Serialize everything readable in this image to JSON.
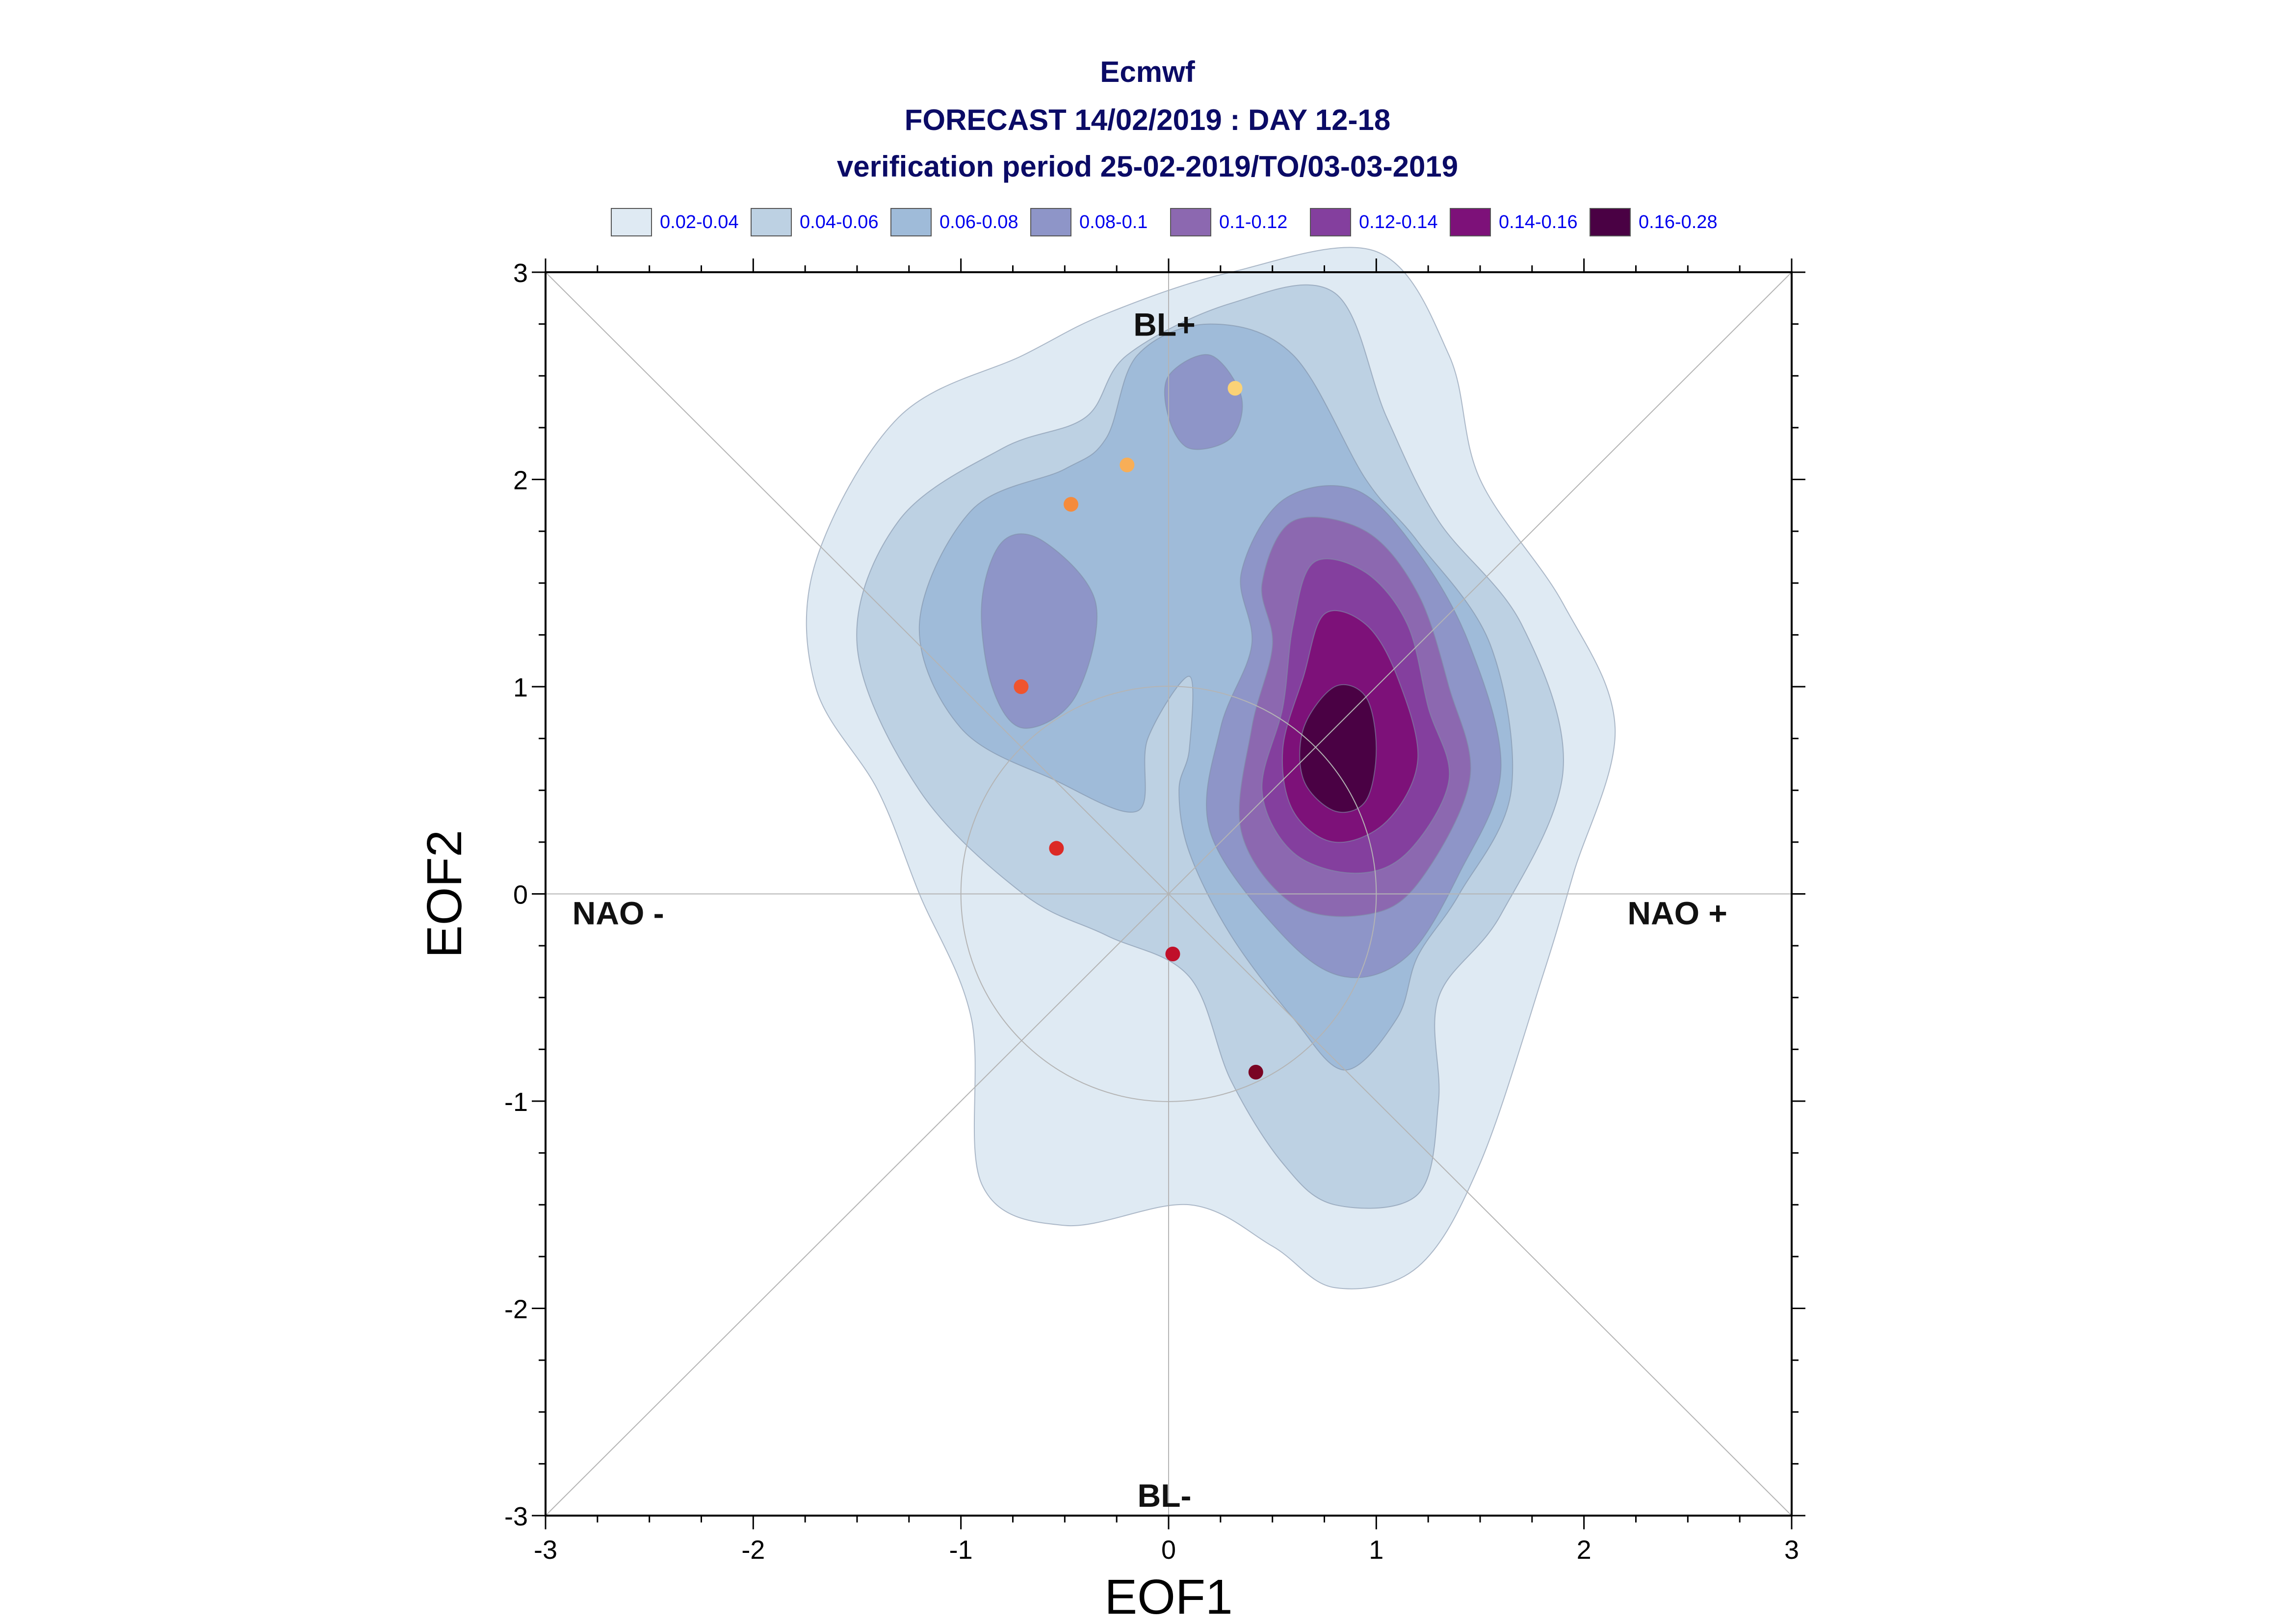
{
  "chart_data": {
    "type": "contour",
    "title_lines": [
      "Ecmwf",
      "FORECAST 14/02/2019 : DAY 12-18",
      "verification period 25-02-2019/TO/03-03-2019"
    ],
    "xlabel": "EOF1",
    "ylabel": "EOF2",
    "xlim": [
      -3,
      3
    ],
    "ylim": [
      -3,
      3
    ],
    "xticks": [
      -3,
      -2,
      -1,
      0,
      1,
      2,
      3
    ],
    "yticks": [
      -3,
      -2,
      -1,
      0,
      1,
      2,
      3
    ],
    "legend": [
      {
        "label": "0.02-0.04",
        "color": "#dfeaf3"
      },
      {
        "label": "0.04-0.06",
        "color": "#bdd1e3"
      },
      {
        "label": "0.06-0.08",
        "color": "#9fbbd9"
      },
      {
        "label": "0.08-0.1",
        "color": "#8e95c8"
      },
      {
        "label": "0.1-0.12",
        "color": "#8c68b0"
      },
      {
        "label": "0.12-0.14",
        "color": "#843f9e"
      },
      {
        "label": "0.14-0.16",
        "color": "#7d1179"
      },
      {
        "label": "0.16-0.28",
        "color": "#4a0144"
      }
    ],
    "regime_labels": [
      {
        "text": "BL+",
        "x": -0.02,
        "y": 2.75
      },
      {
        "text": "BL-",
        "x": -0.02,
        "y": -2.9
      },
      {
        "text": "NAO -",
        "x": -2.65,
        "y": -0.09
      },
      {
        "text": "NAO +",
        "x": 2.45,
        "y": -0.09
      }
    ],
    "points": [
      {
        "x": 0.32,
        "y": 2.44,
        "color": "#fbd276"
      },
      {
        "x": -0.2,
        "y": 2.07,
        "color": "#f8ae57"
      },
      {
        "x": -0.47,
        "y": 1.88,
        "color": "#f58b3c"
      },
      {
        "x": -0.71,
        "y": 1.0,
        "color": "#f0542e"
      },
      {
        "x": -0.54,
        "y": 0.22,
        "color": "#dc2a26"
      },
      {
        "x": 0.02,
        "y": -0.29,
        "color": "#c0102a"
      },
      {
        "x": 0.42,
        "y": -0.86,
        "color": "#7a0424"
      }
    ],
    "contours": [
      {
        "level": "0.02-0.04",
        "points": [
          [
            -0.3,
            2.8
          ],
          [
            0.3,
            3.0
          ],
          [
            1.0,
            3.1
          ],
          [
            1.35,
            2.6
          ],
          [
            1.5,
            2.0
          ],
          [
            1.9,
            1.4
          ],
          [
            2.15,
            0.8
          ],
          [
            1.95,
            0.1
          ],
          [
            1.8,
            -0.4
          ],
          [
            1.5,
            -1.3
          ],
          [
            1.2,
            -1.8
          ],
          [
            0.8,
            -1.9
          ],
          [
            0.5,
            -1.7
          ],
          [
            0.1,
            -1.5
          ],
          [
            -0.5,
            -1.6
          ],
          [
            -0.9,
            -1.4
          ],
          [
            -0.95,
            -0.6
          ],
          [
            -1.2,
            0.0
          ],
          [
            -1.4,
            0.5
          ],
          [
            -1.7,
            1.0
          ],
          [
            -1.7,
            1.6
          ],
          [
            -1.3,
            2.3
          ],
          [
            -0.7,
            2.6
          ]
        ]
      },
      {
        "level": "0.04-0.06",
        "points": [
          [
            -0.2,
            2.6
          ],
          [
            0.3,
            2.85
          ],
          [
            0.8,
            2.9
          ],
          [
            1.05,
            2.3
          ],
          [
            1.3,
            1.8
          ],
          [
            1.7,
            1.3
          ],
          [
            1.9,
            0.6
          ],
          [
            1.6,
            -0.1
          ],
          [
            1.3,
            -0.5
          ],
          [
            1.3,
            -1.0
          ],
          [
            1.2,
            -1.45
          ],
          [
            0.8,
            -1.5
          ],
          [
            0.55,
            -1.3
          ],
          [
            0.3,
            -0.9
          ],
          [
            0.1,
            -0.4
          ],
          [
            -0.3,
            -0.2
          ],
          [
            -0.7,
            0.0
          ],
          [
            -1.2,
            0.5
          ],
          [
            -1.5,
            1.2
          ],
          [
            -1.3,
            1.8
          ],
          [
            -0.8,
            2.15
          ],
          [
            -0.4,
            2.3
          ]
        ]
      },
      {
        "level": "0.06-0.08",
        "points": [
          [
            -0.15,
            2.6
          ],
          [
            0.2,
            2.75
          ],
          [
            0.6,
            2.6
          ],
          [
            0.95,
            2.0
          ],
          [
            1.2,
            1.7
          ],
          [
            1.55,
            1.2
          ],
          [
            1.65,
            0.5
          ],
          [
            1.4,
            0.0
          ],
          [
            1.2,
            -0.3
          ],
          [
            1.1,
            -0.6
          ],
          [
            0.85,
            -0.85
          ],
          [
            0.6,
            -0.6
          ],
          [
            0.3,
            -0.2
          ],
          [
            0.1,
            0.2
          ],
          [
            0.05,
            0.5
          ],
          [
            0.1,
            0.7
          ],
          [
            0.1,
            1.05
          ],
          [
            -0.1,
            0.75
          ],
          [
            -0.15,
            0.4
          ],
          [
            -0.55,
            0.55
          ],
          [
            -1.0,
            0.8
          ],
          [
            -1.2,
            1.3
          ],
          [
            -0.95,
            1.85
          ],
          [
            -0.5,
            2.05
          ],
          [
            -0.3,
            2.2
          ]
        ]
      },
      {
        "level": "0.08-0.1",
        "points": [
          [
            0.0,
            2.5
          ],
          [
            0.2,
            2.6
          ],
          [
            0.35,
            2.4
          ],
          [
            0.3,
            2.2
          ],
          [
            0.1,
            2.15
          ],
          [
            0.0,
            2.3
          ]
        ]
      },
      {
        "level": "0.08-0.1",
        "points": [
          [
            -0.8,
            1.7
          ],
          [
            -0.6,
            1.7
          ],
          [
            -0.35,
            1.4
          ],
          [
            -0.45,
            0.95
          ],
          [
            -0.7,
            0.8
          ],
          [
            -0.85,
            1.0
          ],
          [
            -0.9,
            1.4
          ]
        ]
      },
      {
        "level": "0.08-0.1",
        "points": [
          [
            0.55,
            1.9
          ],
          [
            0.9,
            1.95
          ],
          [
            1.2,
            1.65
          ],
          [
            1.45,
            1.2
          ],
          [
            1.6,
            0.6
          ],
          [
            1.4,
            0.1
          ],
          [
            1.15,
            -0.3
          ],
          [
            0.85,
            -0.4
          ],
          [
            0.55,
            -0.2
          ],
          [
            0.2,
            0.3
          ],
          [
            0.25,
            0.8
          ],
          [
            0.4,
            1.2
          ],
          [
            0.35,
            1.55
          ]
        ]
      },
      {
        "level": "0.1-0.12",
        "points": [
          [
            0.6,
            1.8
          ],
          [
            0.95,
            1.75
          ],
          [
            1.2,
            1.45
          ],
          [
            1.35,
            1.0
          ],
          [
            1.45,
            0.55
          ],
          [
            1.2,
            0.05
          ],
          [
            0.95,
            -0.1
          ],
          [
            0.6,
            -0.05
          ],
          [
            0.35,
            0.3
          ],
          [
            0.4,
            0.8
          ],
          [
            0.5,
            1.2
          ],
          [
            0.45,
            1.5
          ]
        ]
      },
      {
        "level": "0.12-0.14",
        "points": [
          [
            0.7,
            1.6
          ],
          [
            0.95,
            1.55
          ],
          [
            1.15,
            1.3
          ],
          [
            1.25,
            0.9
          ],
          [
            1.35,
            0.55
          ],
          [
            1.15,
            0.2
          ],
          [
            0.9,
            0.1
          ],
          [
            0.6,
            0.2
          ],
          [
            0.45,
            0.5
          ],
          [
            0.55,
            0.9
          ],
          [
            0.6,
            1.3
          ]
        ]
      },
      {
        "level": "0.14-0.16",
        "points": [
          [
            0.75,
            1.35
          ],
          [
            0.95,
            1.3
          ],
          [
            1.1,
            1.05
          ],
          [
            1.2,
            0.65
          ],
          [
            1.05,
            0.35
          ],
          [
            0.8,
            0.25
          ],
          [
            0.6,
            0.4
          ],
          [
            0.55,
            0.7
          ],
          [
            0.65,
            1.05
          ]
        ]
      },
      {
        "level": "0.16-0.28",
        "points": [
          [
            0.8,
            1.0
          ],
          [
            0.95,
            0.95
          ],
          [
            1.0,
            0.7
          ],
          [
            0.95,
            0.45
          ],
          [
            0.8,
            0.4
          ],
          [
            0.65,
            0.55
          ],
          [
            0.65,
            0.8
          ]
        ]
      }
    ]
  }
}
